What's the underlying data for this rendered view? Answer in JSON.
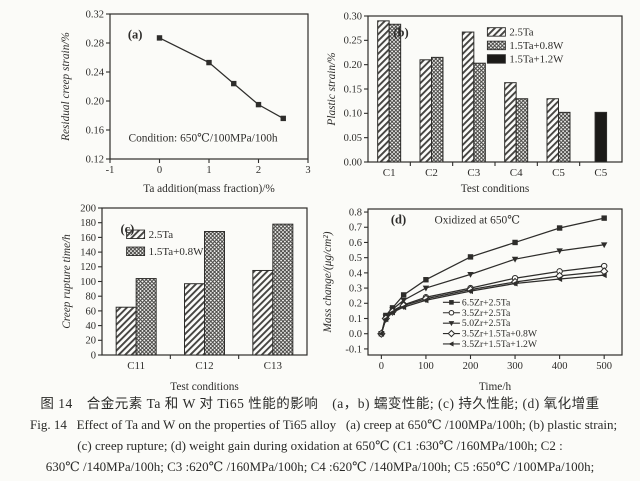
{
  "page": {
    "background": "#fbfbf8",
    "ink": "#2e2d2b",
    "bar_fill_bg": "#fcfcfa",
    "solid_bar_color": "#1b1a18"
  },
  "caption": {
    "line1_zh": "图 14　合金元素 Ta 和 W 对 Ti65 性能的影响　(a，b) 蠕变性能; (c) 持久性能; (d) 氧化增重",
    "line2_en": "Fig. 14   Effect of Ta and W on the properties of Ti65 alloy   (a) creep at 650℃ /100MPa/100h; (b) plastic strain;",
    "line3_en": "(c) creep rupture; (d) weight gain during oxidation at 650℃ (C1 :630℃ /160MPa/100h; C2 :",
    "line4_en": "630℃ /140MPa/100h; C3 :620℃ /160MPa/100h; C4 :620℃ /140MPa/100h; C5 :650℃ /100MPa/100h;"
  },
  "chart_data": [
    {
      "id": "a",
      "type": "line",
      "panel_label": "(a)",
      "xlabel": "Ta addition(mass fraction)/%",
      "ylabel": "Residual creep strain/%",
      "xlim": [
        -1,
        3
      ],
      "ylim": [
        0.12,
        0.32
      ],
      "xticks": [
        "-1",
        "0",
        "1",
        "2",
        "3"
      ],
      "yticks": [
        "0.12",
        "0.16",
        "0.20",
        "0.24",
        "0.28",
        "0.32"
      ],
      "annotation": "Condition: 650℃/100MPa/100h",
      "grid": false,
      "legend_position": "none",
      "x": [
        0,
        1,
        1.5,
        2,
        2.5
      ],
      "series": [
        {
          "name": "residual creep strain",
          "marker": "square",
          "y": [
            0.287,
            0.253,
            0.224,
            0.195,
            0.176
          ]
        }
      ]
    },
    {
      "id": "b",
      "type": "bar",
      "panel_label": "(b)",
      "xlabel": "Test conditions",
      "ylabel": "Plastic strain/%",
      "ylim": [
        0,
        0.3
      ],
      "yticks": [
        "0.00",
        "0.05",
        "0.10",
        "0.15",
        "0.20",
        "0.25",
        "0.30"
      ],
      "categories": [
        "C1",
        "C2",
        "C3",
        "C4",
        "C5",
        "C5"
      ],
      "grid": false,
      "legend_position": "top-right",
      "series": [
        {
          "name": "2.5Ta",
          "pattern": "diagonal",
          "values": [
            0.29,
            0.21,
            0.267,
            0.163,
            0.13,
            null
          ]
        },
        {
          "name": "1.5Ta+0.8W",
          "pattern": "crosshatch",
          "values": [
            0.283,
            0.215,
            0.203,
            0.13,
            0.102,
            null
          ]
        },
        {
          "name": "1.5Ta+1.2W",
          "pattern": "solid",
          "values": [
            null,
            null,
            null,
            null,
            null,
            0.102
          ]
        }
      ]
    },
    {
      "id": "c",
      "type": "bar",
      "panel_label": "(c)",
      "xlabel": "Test conditions",
      "ylabel": "Creep rupture time/h",
      "ylim": [
        0,
        200
      ],
      "yticks": [
        "0",
        "20",
        "40",
        "60",
        "80",
        "100",
        "120",
        "140",
        "160",
        "180",
        "200"
      ],
      "categories": [
        "C11",
        "C12",
        "C13"
      ],
      "grid": false,
      "legend_position": "upper-left",
      "series": [
        {
          "name": "2.5Ta",
          "pattern": "diagonal",
          "values": [
            65,
            97,
            115
          ]
        },
        {
          "name": "1.5Ta+0.8W",
          "pattern": "crosshatch",
          "values": [
            104,
            168,
            178
          ]
        }
      ]
    },
    {
      "id": "d",
      "type": "line",
      "panel_label": "(d)",
      "xlabel": "Time/h",
      "ylabel": "Mass change/(μg/cm²)",
      "xlim": [
        -30,
        540
      ],
      "ylim": [
        -0.14,
        0.82
      ],
      "xticks": [
        "0",
        "100",
        "200",
        "300",
        "400",
        "500"
      ],
      "yticks": [
        "-0.1",
        "0.0",
        "0.1",
        "0.2",
        "0.3",
        "0.4",
        "0.5",
        "0.6",
        "0.7",
        "0.8"
      ],
      "annotation": "Oxidized at 650℃",
      "grid": false,
      "legend_position": "lower-right",
      "x": [
        0,
        10,
        25,
        50,
        100,
        200,
        300,
        400,
        500
      ],
      "series": [
        {
          "name": "6.5Zr+2.5Ta",
          "marker": "square",
          "y": [
            0,
            0.12,
            0.17,
            0.255,
            0.355,
            0.505,
            0.6,
            0.695,
            0.76
          ]
        },
        {
          "name": "3.5Zr+2.5Ta",
          "marker": "circle",
          "y": [
            0,
            0.1,
            0.15,
            0.19,
            0.24,
            0.3,
            0.365,
            0.41,
            0.445
          ]
        },
        {
          "name": "5.0Zr+2.5Ta",
          "marker": "triangle-down",
          "y": [
            0,
            0.11,
            0.16,
            0.22,
            0.3,
            0.39,
            0.49,
            0.545,
            0.585
          ]
        },
        {
          "name": "3.5Zr+1.5Ta+0.8W",
          "marker": "diamond",
          "y": [
            0,
            0.1,
            0.145,
            0.185,
            0.23,
            0.29,
            0.34,
            0.38,
            0.41
          ]
        },
        {
          "name": "3.5Zr+1.5Ta+1.2W",
          "marker": "triangle-left",
          "y": [
            0,
            0.095,
            0.14,
            0.175,
            0.22,
            0.28,
            0.33,
            0.36,
            0.385
          ]
        }
      ]
    }
  ]
}
